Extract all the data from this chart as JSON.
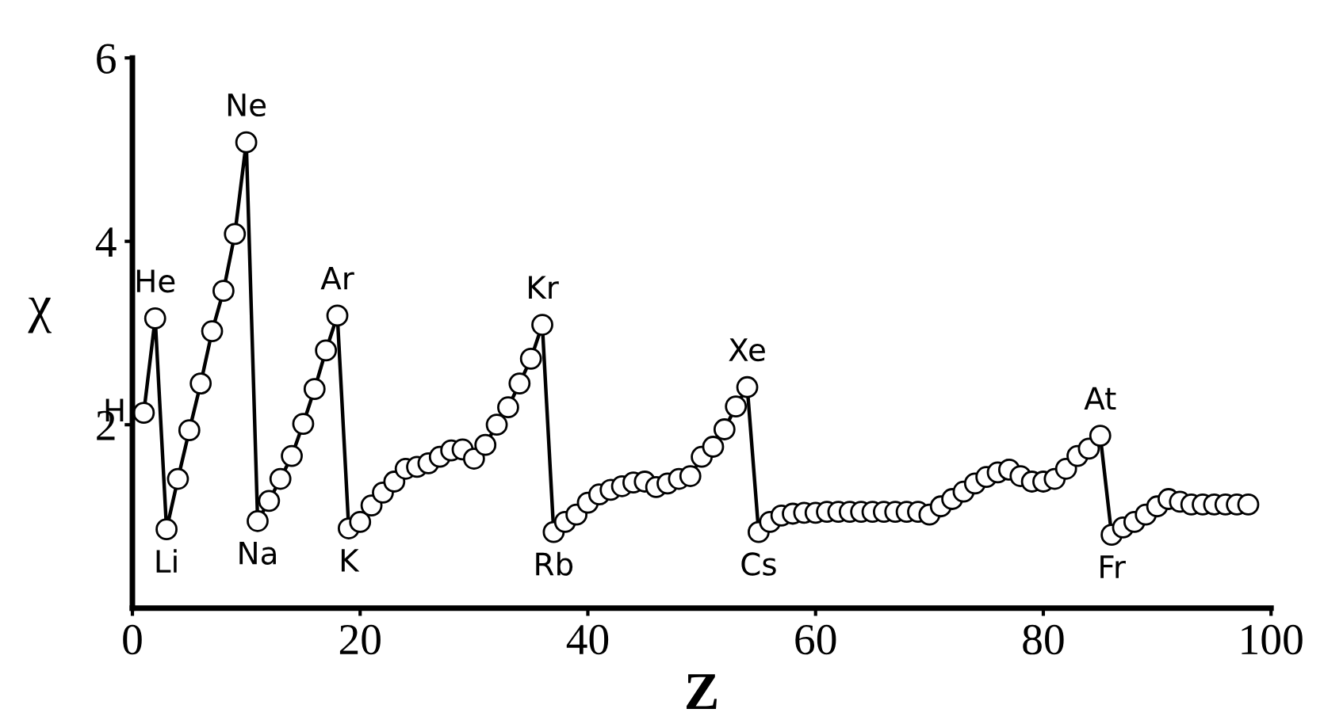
{
  "chart_data": {
    "type": "line",
    "xlabel": "Z",
    "ylabel": "χ",
    "marker": "circle",
    "line_style": "solid",
    "grid": false,
    "legend": false,
    "xlim": [
      0,
      100
    ],
    "xticks": [
      0,
      20,
      40,
      60,
      80,
      100
    ],
    "ylim": [
      0,
      6
    ],
    "yticks": [
      2,
      4,
      6
    ],
    "series": [
      {
        "color": "#000000",
        "x": [
          1,
          2,
          3,
          4,
          5,
          6,
          7,
          8,
          9,
          10,
          11,
          12,
          13,
          14,
          15,
          16,
          17,
          18,
          19,
          20,
          21,
          22,
          23,
          24,
          25,
          26,
          27,
          28,
          29,
          30,
          31,
          32,
          33,
          34,
          35,
          36,
          37,
          38,
          39,
          40,
          41,
          42,
          43,
          44,
          45,
          46,
          47,
          48,
          49,
          50,
          51,
          52,
          53,
          54,
          55,
          56,
          57,
          58,
          59,
          60,
          61,
          62,
          63,
          64,
          65,
          66,
          67,
          68,
          69,
          70,
          71,
          72,
          73,
          74,
          75,
          76,
          77,
          78,
          79,
          80,
          81,
          82,
          83,
          84,
          85,
          86,
          87,
          88,
          89,
          90,
          91,
          92,
          93,
          94,
          95,
          96,
          97,
          98
        ],
        "values": [
          2.13,
          3.16,
          0.86,
          1.41,
          1.94,
          2.45,
          3.02,
          3.46,
          4.08,
          5.08,
          0.95,
          1.17,
          1.41,
          1.66,
          2.01,
          2.39,
          2.81,
          3.19,
          0.87,
          0.94,
          1.12,
          1.26,
          1.38,
          1.52,
          1.54,
          1.58,
          1.65,
          1.72,
          1.73,
          1.63,
          1.78,
          2.0,
          2.19,
          2.45,
          2.72,
          3.09,
          0.83,
          0.94,
          1.02,
          1.15,
          1.24,
          1.29,
          1.33,
          1.37,
          1.38,
          1.32,
          1.36,
          1.41,
          1.44,
          1.65,
          1.76,
          1.95,
          2.2,
          2.41,
          0.83,
          0.94,
          1.01,
          1.03,
          1.04,
          1.04,
          1.05,
          1.05,
          1.05,
          1.05,
          1.05,
          1.05,
          1.05,
          1.05,
          1.05,
          1.02,
          1.11,
          1.19,
          1.27,
          1.36,
          1.43,
          1.48,
          1.51,
          1.44,
          1.38,
          1.38,
          1.41,
          1.52,
          1.66,
          1.74,
          1.88,
          0.8,
          0.88,
          0.94,
          1.02,
          1.11,
          1.19,
          1.16,
          1.13,
          1.13,
          1.13,
          1.13,
          1.13,
          1.13
        ]
      }
    ],
    "annotations": [
      {
        "text": "H",
        "x": 1,
        "y": 2.13
      },
      {
        "text": "He",
        "x": 2,
        "y": 3.16
      },
      {
        "text": "Li",
        "x": 3,
        "y": 0.86
      },
      {
        "text": "Ne",
        "x": 10,
        "y": 5.08
      },
      {
        "text": "Na",
        "x": 11,
        "y": 0.95
      },
      {
        "text": "Ar",
        "x": 18,
        "y": 3.19
      },
      {
        "text": "K",
        "x": 19,
        "y": 0.87
      },
      {
        "text": "Kr",
        "x": 36,
        "y": 3.09
      },
      {
        "text": "Rb",
        "x": 37,
        "y": 0.83
      },
      {
        "text": "Xe",
        "x": 54,
        "y": 2.41
      },
      {
        "text": "Cs",
        "x": 55,
        "y": 0.83
      },
      {
        "text": "At",
        "x": 85,
        "y": 1.88
      },
      {
        "text": "Fr",
        "x": 86,
        "y": 0.8
      }
    ]
  }
}
